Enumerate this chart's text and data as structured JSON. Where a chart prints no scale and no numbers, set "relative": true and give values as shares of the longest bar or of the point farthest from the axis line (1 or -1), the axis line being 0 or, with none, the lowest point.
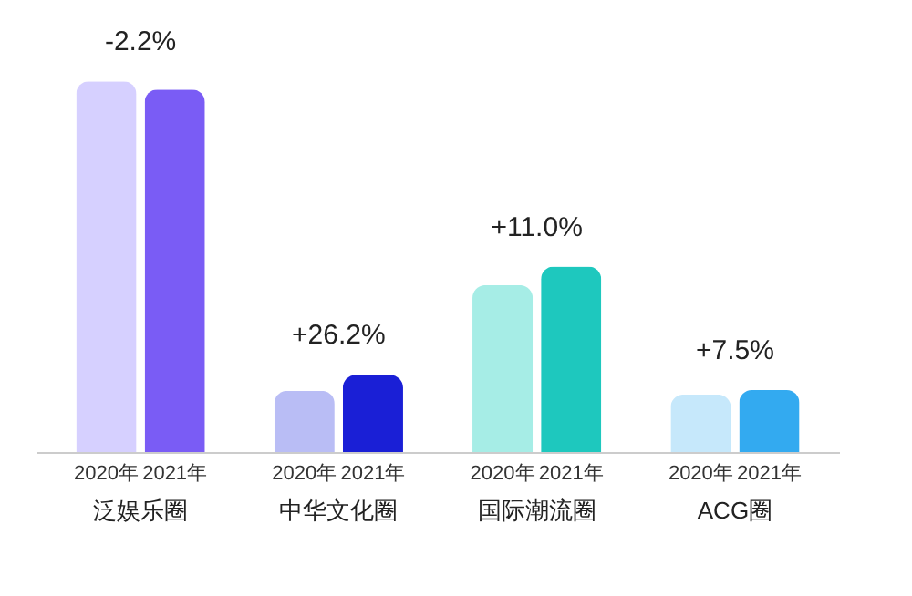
{
  "chart_data": {
    "type": "bar",
    "relative": true,
    "categories": [
      "泛娱乐圈",
      "中华文化圈",
      "国际潮流圈",
      "ACG圈"
    ],
    "series": [
      {
        "name": "2020年",
        "colors": [
          "#d6d0ff",
          "#b9bdf5",
          "#a6ede6",
          "#c6e8fb"
        ],
        "values": [
          1,
          0.165,
          0.45,
          0.155
        ]
      },
      {
        "name": "2021年",
        "colors": [
          "#7a5cf5",
          "#1a1fd6",
          "#1ec8be",
          "#33aaf0"
        ],
        "values": [
          0.978,
          0.208,
          0.5,
          0.167
        ]
      }
    ],
    "annotations": [
      "-2.2%",
      "+26.2%",
      "+11.0%",
      "+7.5%"
    ]
  }
}
